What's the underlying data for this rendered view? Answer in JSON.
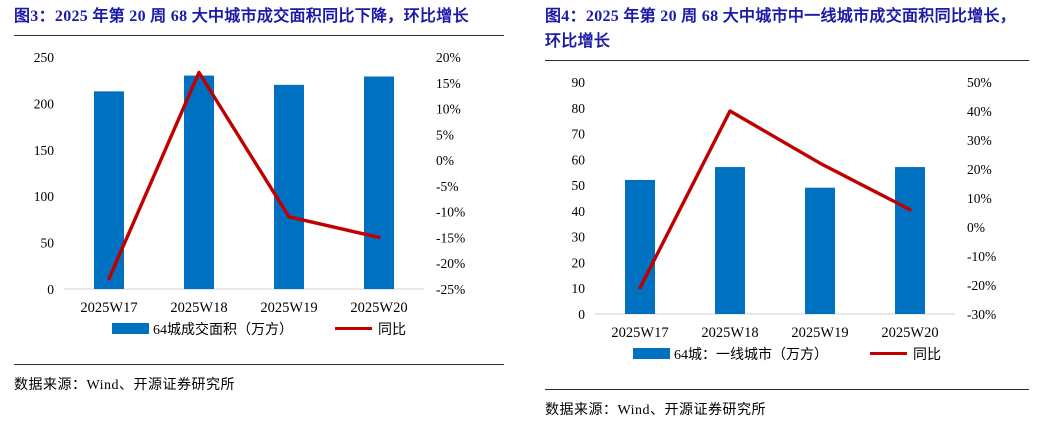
{
  "panels": [
    {
      "title": "图3：2025 年第 20 周 68 大中城市成交面积同比下降，环比增长",
      "source": "数据来源：Wind、开源证券研究所"
    },
    {
      "title": "图4：2025 年第 20 周 68 大中城市中一线城市成交面积同比增长，环比增长",
      "source": "数据来源：Wind、开源证券研究所"
    }
  ],
  "colors": {
    "bar_blue": "#0070C0",
    "line_red": "#C00000",
    "title_navy": "#1b1ba8",
    "baseline_gray": "#d9d9d9"
  },
  "chart_data": [
    {
      "type": "bar",
      "subtype": "bar+line dual-axis",
      "title": "图3：2025 年第 20 周 68 大中城市成交面积同比下降，环比增长",
      "categories": [
        "2025W17",
        "2025W18",
        "2025W19",
        "2025W20"
      ],
      "series": [
        {
          "name": "64城成交面积（万方）",
          "type": "bar",
          "axis": "left",
          "color": "#0070C0",
          "values": [
            213,
            230,
            220,
            229
          ]
        },
        {
          "name": "同比",
          "type": "line",
          "axis": "right",
          "color": "#C00000",
          "values": [
            -23,
            17,
            -11,
            -15
          ]
        }
      ],
      "axis_left": {
        "min": 0,
        "max": 250,
        "step": 50,
        "format": "number"
      },
      "axis_right": {
        "min": -25,
        "max": 20,
        "step": 5,
        "format": "percent"
      },
      "grid": false,
      "legend_position": "bottom"
    },
    {
      "type": "bar",
      "subtype": "bar+line dual-axis",
      "title": "图4：2025 年第 20 周 68 大中城市中一线城市成交面积同比增长，环比增长",
      "categories": [
        "2025W17",
        "2025W18",
        "2025W19",
        "2025W20"
      ],
      "series": [
        {
          "name": "64城：一线城市（万方）",
          "type": "bar",
          "axis": "left",
          "color": "#0070C0",
          "values": [
            52,
            57,
            49,
            57
          ]
        },
        {
          "name": "同比",
          "type": "line",
          "axis": "right",
          "color": "#C00000",
          "values": [
            -21,
            40,
            22,
            6
          ]
        }
      ],
      "axis_left": {
        "min": 0,
        "max": 90,
        "step": 10,
        "format": "number"
      },
      "axis_right": {
        "min": -30,
        "max": 50,
        "step": 10,
        "format": "percent"
      },
      "grid": false,
      "legend_position": "bottom"
    }
  ]
}
